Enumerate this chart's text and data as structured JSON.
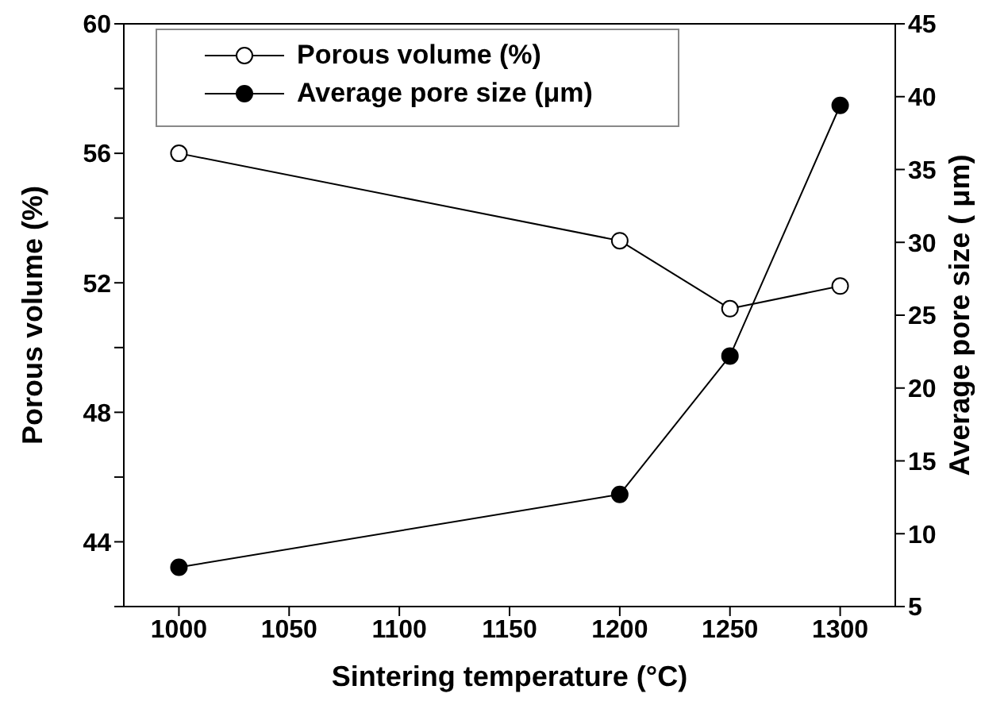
{
  "chart_data": {
    "type": "line",
    "xlabel": "Sintering temperature (°C)",
    "ylabel": "Porous volume (%)",
    "y2label": "Average pore size ( μm)",
    "x": [
      1000,
      1200,
      1250,
      1300
    ],
    "series": [
      {
        "name": "Porous volume (%)",
        "color": "#000000",
        "colors": [
          "#ffffff",
          "#ffffff",
          "#ffffff",
          "#ffffff"
        ],
        "values": [
          56.0,
          53.3,
          51.2,
          51.9
        ]
      },
      {
        "name": "Average pore size (μm)",
        "color": "#000000",
        "colors": [
          "#000000",
          "#000000",
          "#000000",
          "#000000"
        ],
        "axis": "y2",
        "values": [
          7.7,
          12.7,
          22.2,
          39.4
        ]
      }
    ],
    "xlim": [
      975,
      1325
    ],
    "xticks": [
      1000,
      1050,
      1100,
      1150,
      1200,
      1250,
      1300
    ],
    "ylim": [
      42,
      60
    ],
    "yticks": [
      {
        "value": 42,
        "label": null
      },
      44,
      {
        "value": 46,
        "label": null
      },
      48,
      {
        "value": 50,
        "label": null
      },
      52,
      {
        "value": 54,
        "label": null
      },
      56,
      {
        "value": 58,
        "label": null
      },
      60
    ],
    "y2lim": [
      5,
      45
    ],
    "y2ticks": [
      5,
      10,
      15,
      20,
      25,
      30,
      35,
      40,
      45
    ],
    "marker": "circle",
    "line_style": "solid",
    "grid": false,
    "legend": "top left"
  }
}
